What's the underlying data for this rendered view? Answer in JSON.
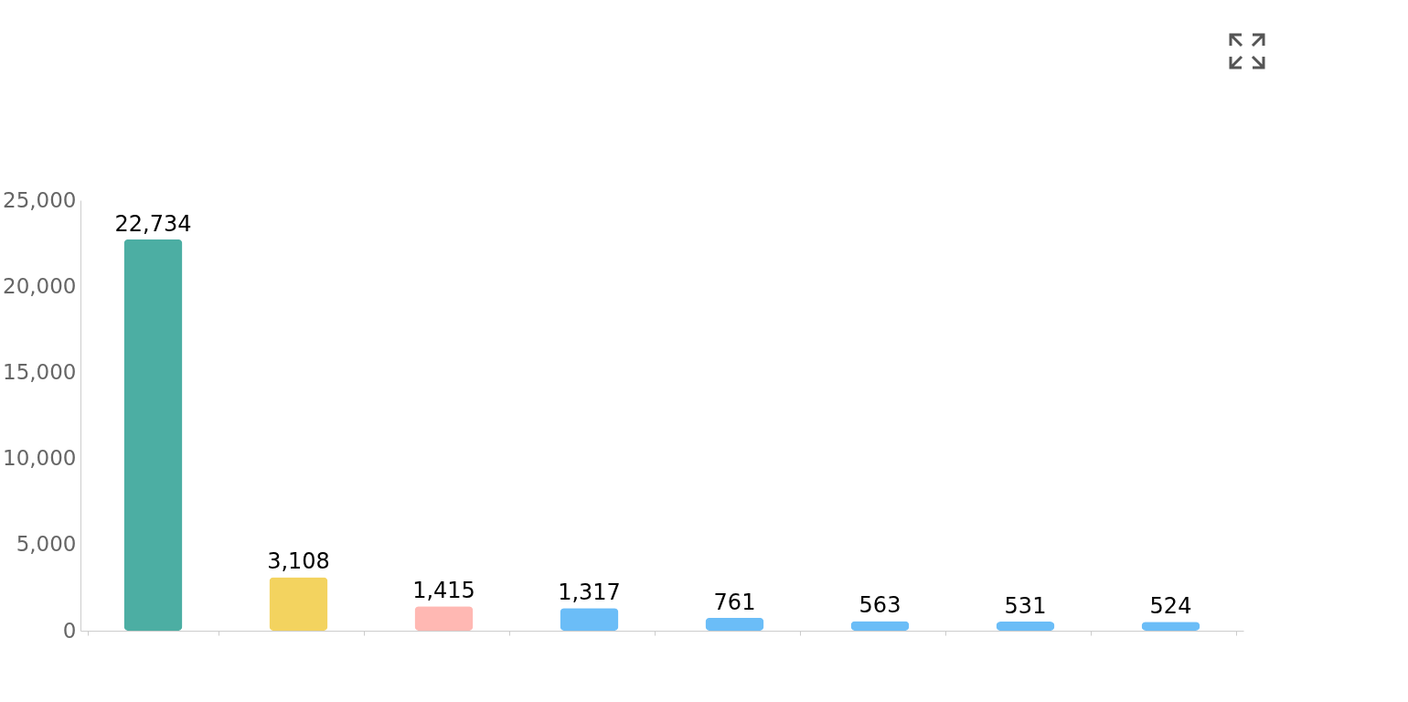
{
  "chart_data": {
    "type": "bar",
    "categories": [
      null,
      null,
      null,
      null,
      null,
      null,
      null,
      null
    ],
    "values": [
      22734,
      3108,
      1415,
      1317,
      761,
      563,
      531,
      524
    ],
    "colors": [
      "#4caea3",
      "#f3d35f",
      "#ffb8b3",
      "#6bbdf7",
      "#6bbdf7",
      "#6bbdf7",
      "#6bbdf7",
      "#6bbdf7"
    ],
    "ylim": [
      0,
      25000
    ],
    "yticks": [
      0,
      {
        "value": 5000,
        "label": "5,000"
      },
      {
        "value": 10000,
        "label": "10,000"
      },
      {
        "value": 15000,
        "label": "15,000"
      },
      {
        "value": 20000,
        "label": "20,000"
      },
      {
        "value": 25000,
        "label": "25,000"
      }
    ],
    "value_labels": [
      "22,734",
      "3,108",
      "1,415",
      "1,317",
      "761",
      "563",
      "531",
      "524"
    ],
    "grid": false
  }
}
